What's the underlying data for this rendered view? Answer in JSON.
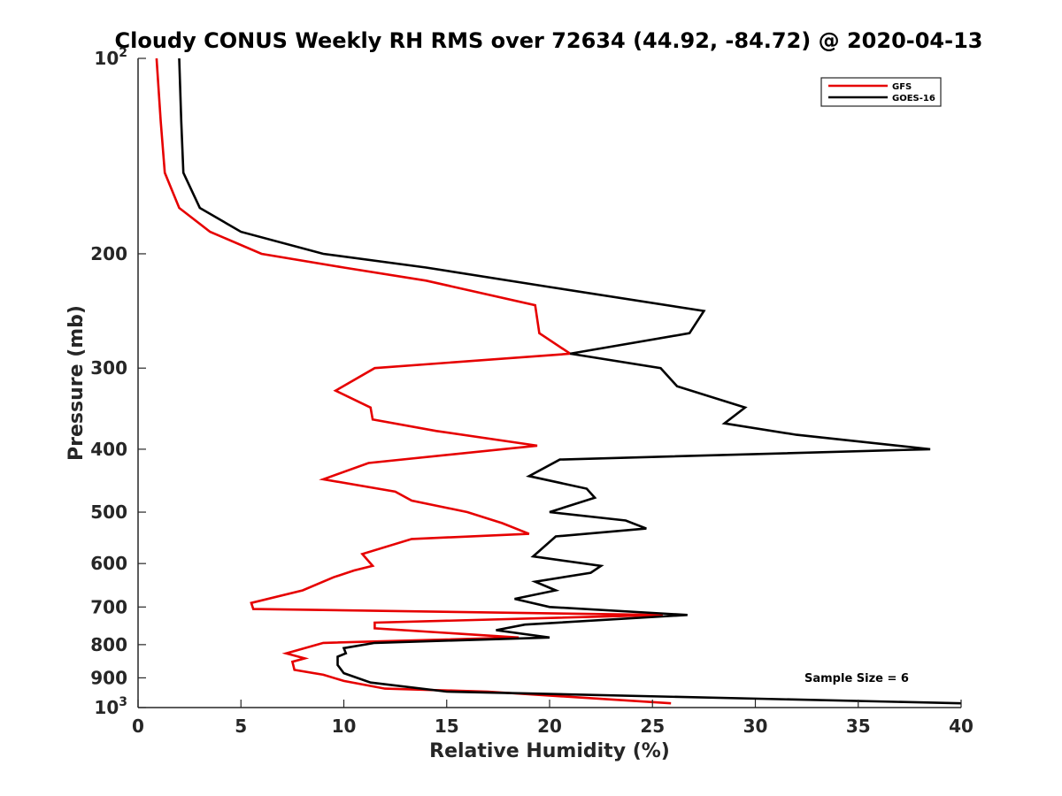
{
  "chart_data": {
    "type": "line",
    "title": "Cloudy CONUS Weekly RH RMS over 72634 (44.92, -84.72) @ 2020-04-13",
    "xlabel": "Relative Humidity (%)",
    "ylabel": "Pressure (mb)",
    "xlim": [
      0,
      40
    ],
    "ylim": [
      100,
      1000
    ],
    "y_scale": "log",
    "y_reversed": true,
    "x_ticks": [
      "0",
      "5",
      "10",
      "15",
      "20",
      "25",
      "30",
      "35",
      "40"
    ],
    "y_ticks": [
      {
        "value": 100,
        "base": "10",
        "exp": "2"
      },
      {
        "value": 200,
        "label": "200"
      },
      {
        "value": 300,
        "label": "300"
      },
      {
        "value": 400,
        "label": "400"
      },
      {
        "value": 500,
        "label": "500"
      },
      {
        "value": 600,
        "label": "600"
      },
      {
        "value": 700,
        "label": "700"
      },
      {
        "value": 800,
        "label": "800"
      },
      {
        "value": 900,
        "label": "900"
      },
      {
        "value": 1000,
        "base": "10",
        "exp": "3"
      }
    ],
    "grid": false,
    "legend_position": "top-right",
    "annotation": "Sample Size = 6",
    "series": [
      {
        "name": "GFS",
        "color": "#e60000",
        "points": [
          [
            0.9,
            100
          ],
          [
            1.1,
            125
          ],
          [
            1.3,
            150
          ],
          [
            2.0,
            170
          ],
          [
            3.5,
            185
          ],
          [
            6.0,
            200
          ],
          [
            10.0,
            210
          ],
          [
            14.0,
            220
          ],
          [
            19.3,
            240
          ],
          [
            19.5,
            265
          ],
          [
            21.0,
            285
          ],
          [
            11.5,
            300
          ],
          [
            9.6,
            325
          ],
          [
            11.3,
            345
          ],
          [
            11.4,
            360
          ],
          [
            14.5,
            375
          ],
          [
            19.4,
            395
          ],
          [
            11.2,
            420
          ],
          [
            9.0,
            445
          ],
          [
            12.5,
            465
          ],
          [
            13.3,
            480
          ],
          [
            16.0,
            500
          ],
          [
            17.7,
            520
          ],
          [
            19.0,
            540
          ],
          [
            13.3,
            550
          ],
          [
            10.9,
            580
          ],
          [
            11.4,
            605
          ],
          [
            10.5,
            615
          ],
          [
            9.5,
            630
          ],
          [
            8.0,
            660
          ],
          [
            5.5,
            690
          ],
          [
            5.6,
            705
          ],
          [
            25.5,
            720
          ],
          [
            11.5,
            740
          ],
          [
            11.5,
            755
          ],
          [
            18.5,
            780
          ],
          [
            9.0,
            795
          ],
          [
            7.2,
            825
          ],
          [
            8.1,
            840
          ],
          [
            7.5,
            850
          ],
          [
            7.6,
            875
          ],
          [
            9.0,
            890
          ],
          [
            10.0,
            910
          ],
          [
            12.0,
            935
          ],
          [
            17.0,
            945
          ],
          [
            25.9,
            985
          ]
        ]
      },
      {
        "name": "GOES-16",
        "color": "#000000",
        "points": [
          [
            2.0,
            100
          ],
          [
            2.1,
            125
          ],
          [
            2.2,
            150
          ],
          [
            3.0,
            170
          ],
          [
            5.0,
            185
          ],
          [
            9.0,
            200
          ],
          [
            14.0,
            210
          ],
          [
            20.0,
            225
          ],
          [
            27.5,
            245
          ],
          [
            26.8,
            265
          ],
          [
            21.0,
            285
          ],
          [
            25.4,
            300
          ],
          [
            26.2,
            320
          ],
          [
            29.5,
            345
          ],
          [
            28.5,
            365
          ],
          [
            32.0,
            380
          ],
          [
            38.5,
            400
          ],
          [
            20.5,
            415
          ],
          [
            19.0,
            440
          ],
          [
            21.8,
            460
          ],
          [
            22.2,
            475
          ],
          [
            20.0,
            500
          ],
          [
            23.7,
            515
          ],
          [
            24.7,
            530
          ],
          [
            20.3,
            545
          ],
          [
            19.2,
            585
          ],
          [
            22.5,
            605
          ],
          [
            22.0,
            620
          ],
          [
            19.3,
            640
          ],
          [
            20.3,
            660
          ],
          [
            18.3,
            680
          ],
          [
            20.0,
            700
          ],
          [
            26.7,
            720
          ],
          [
            18.8,
            745
          ],
          [
            17.4,
            760
          ],
          [
            20.0,
            780
          ],
          [
            11.5,
            795
          ],
          [
            10.0,
            810
          ],
          [
            10.1,
            825
          ],
          [
            9.7,
            835
          ],
          [
            9.7,
            860
          ],
          [
            10.0,
            885
          ],
          [
            11.3,
            915
          ],
          [
            15.0,
            945
          ],
          [
            40.0,
            985
          ]
        ]
      }
    ]
  }
}
